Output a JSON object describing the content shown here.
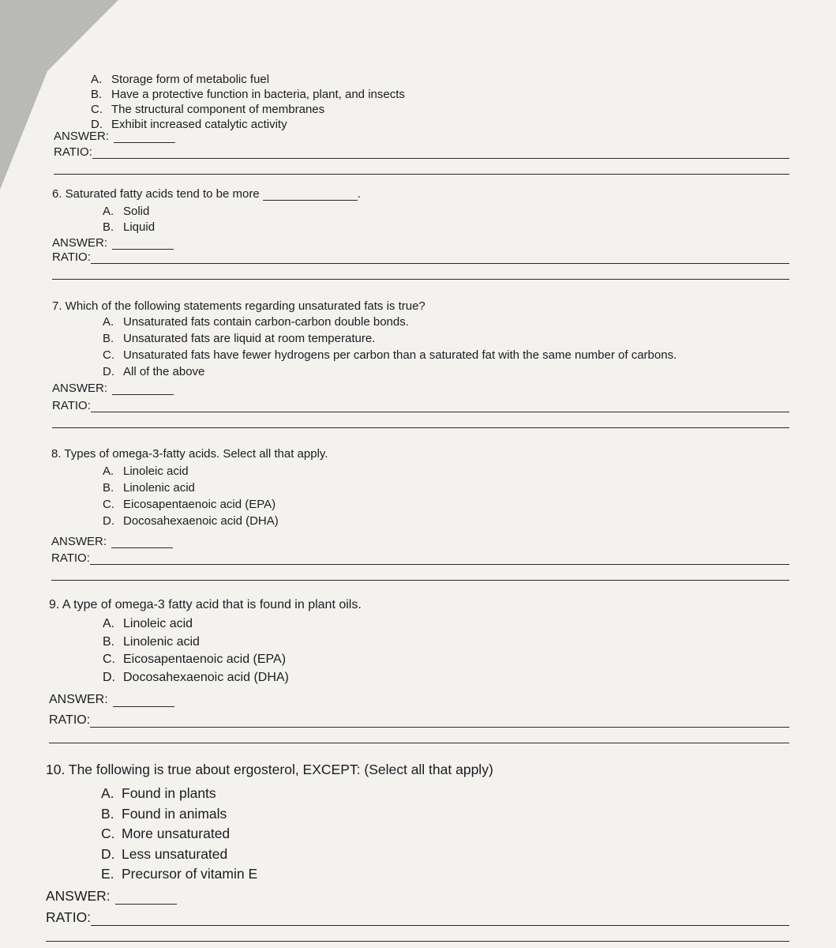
{
  "questions": [
    {
      "options": [
        {
          "letter": "A.",
          "text": "Storage form of metabolic fuel"
        },
        {
          "letter": "B.",
          "text": "Have a protective function in bacteria, plant, and insects"
        },
        {
          "letter": "C.",
          "text": "The structural component of membranes"
        },
        {
          "letter": "D.",
          "text": "Exhibit increased catalytic activity"
        }
      ],
      "answer_label": "ANSWER:",
      "ratio_label": "RATIO:"
    },
    {
      "stem": "6. Saturated fatty acids tend to be more",
      "stem_end": ".",
      "options": [
        {
          "letter": "A.",
          "text": "Solid"
        },
        {
          "letter": "B.",
          "text": "Liquid"
        }
      ],
      "answer_label": "ANSWER:",
      "ratio_label": "RATIO:"
    },
    {
      "stem": "7. Which of the following statements regarding unsaturated fats is true?",
      "options": [
        {
          "letter": "A.",
          "text": "Unsaturated fats contain carbon-carbon double bonds."
        },
        {
          "letter": "B.",
          "text": "Unsaturated fats are liquid at room temperature."
        },
        {
          "letter": "C.",
          "text": "Unsaturated fats have fewer hydrogens per carbon than a saturated fat with the same number of carbons."
        },
        {
          "letter": "D.",
          "text": "All of the above"
        }
      ],
      "answer_label": "ANSWER:",
      "ratio_label": "RATIO:"
    },
    {
      "stem": "8. Types of omega-3-fatty acids. Select all that apply.",
      "options": [
        {
          "letter": "A.",
          "text": "Linoleic acid"
        },
        {
          "letter": "B.",
          "text": "Linolenic acid"
        },
        {
          "letter": "C.",
          "text": "Eicosapentaenoic acid (EPA)"
        },
        {
          "letter": "D.",
          "text": "Docosahexaenoic acid (DHA)"
        }
      ],
      "answer_label": "ANSWER:",
      "ratio_label": "RATIO:"
    },
    {
      "stem": "9. A type of omega-3 fatty acid that is found in plant oils.",
      "options": [
        {
          "letter": "A.",
          "text": "Linoleic acid"
        },
        {
          "letter": "B.",
          "text": "Linolenic acid"
        },
        {
          "letter": "C.",
          "text": "Eicosapentaenoic acid (EPA)"
        },
        {
          "letter": "D.",
          "text": "Docosahexaenoic acid (DHA)"
        }
      ],
      "answer_label": "ANSWER:",
      "ratio_label": "RATIO:"
    },
    {
      "stem": "10. The following is true about ergosterol, EXCEPT: (Select all that apply)",
      "options": [
        {
          "letter": "A.",
          "text": "Found in plants"
        },
        {
          "letter": "B.",
          "text": "Found in animals"
        },
        {
          "letter": "C.",
          "text": "More unsaturated"
        },
        {
          "letter": "D.",
          "text": "Less unsaturated"
        },
        {
          "letter": "E.",
          "text": "Precursor of vitamin E"
        }
      ],
      "answer_label": "ANSWER:",
      "ratio_label": "RATIO:"
    }
  ]
}
